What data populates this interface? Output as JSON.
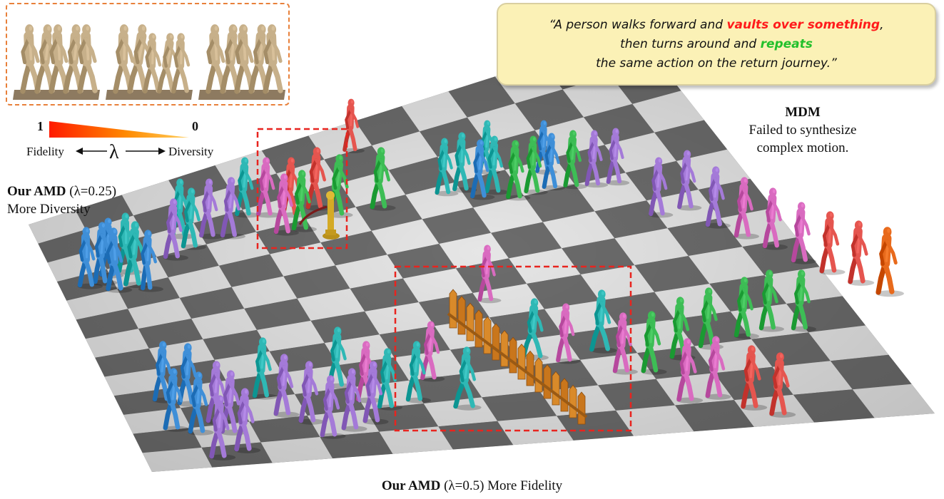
{
  "prompt": {
    "line1_pre": "“A person walks forward and ",
    "line1_highlight": "vaults over something",
    "line1_post": ",",
    "line2_pre": "then turns around and ",
    "line2_highlight": "repeats",
    "line3": "the same action on the return journey.”"
  },
  "scale": {
    "high_value": "1",
    "low_value": "0",
    "left_label": "Fidelity",
    "right_label": "Diversity",
    "symbol": "λ"
  },
  "labels": {
    "amd_diversity_name": "Our AMD",
    "amd_diversity_param": " (λ=0.25)",
    "amd_diversity_desc": "More Diversity",
    "mdm_name": "MDM",
    "mdm_desc_line1": "Failed to synthesize",
    "mdm_desc_line2": "complex motion.",
    "amd_fidelity_name": "Our AMD",
    "amd_fidelity_param": " (λ=0.5) More Fidelity"
  },
  "colors": {
    "prompt_bg": "#fbf1b6",
    "highlight_red": "#ff1b1b",
    "highlight_green": "#22c02b",
    "dashed_box": "#e8241f",
    "inset_border": "#e8803a",
    "figure_blue": "#3f8fd8",
    "figure_cyan": "#2fb8b5",
    "figure_purple": "#a47ad8",
    "figure_pink": "#d96bc0",
    "figure_red": "#e5554f",
    "figure_green": "#3dbd55",
    "figure_orange": "#e86a1c",
    "fence": "#c9761c",
    "bollard": "#c9a31c"
  }
}
